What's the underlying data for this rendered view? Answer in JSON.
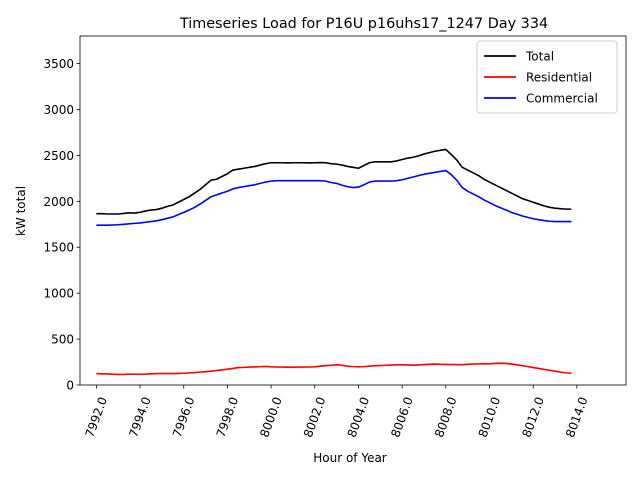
{
  "chart_data": {
    "type": "line",
    "title": "Timeseries Load for P16U p16uhs17_1247  Day 334",
    "xlabel": "Hour of Year",
    "ylabel": "kW total",
    "xlim": [
      7991.25,
      8016.25
    ],
    "ylim": [
      0,
      3800
    ],
    "x_ticks": [
      7992,
      7994,
      7996,
      7998,
      8000,
      8002,
      8004,
      8006,
      8008,
      8010,
      8012,
      8014
    ],
    "x_tick_labels": [
      "7992.0",
      "7994.0",
      "7996.0",
      "7998.0",
      "8000.0",
      "8002.0",
      "8004.0",
      "8006.0",
      "8008.0",
      "8010.0",
      "8012.0",
      "8014.0"
    ],
    "y_ticks": [
      0,
      500,
      1000,
      1500,
      2000,
      2500,
      3000,
      3500
    ],
    "y_tick_labels": [
      "0",
      "500",
      "1000",
      "1500",
      "2000",
      "2500",
      "3000",
      "3500"
    ],
    "legend_position": "top-right",
    "x_start": 7992,
    "x_step": 0.25,
    "series": [
      {
        "name": "Total",
        "color": "#000000",
        "values": [
          1865,
          1865,
          1862,
          1862,
          1862,
          1868,
          1875,
          1872,
          1880,
          1895,
          1905,
          1910,
          1925,
          1945,
          1960,
          1990,
          2020,
          2050,
          2090,
          2130,
          2180,
          2230,
          2240,
          2270,
          2300,
          2340,
          2350,
          2360,
          2370,
          2380,
          2395,
          2410,
          2420,
          2420,
          2420,
          2418,
          2420,
          2420,
          2420,
          2418,
          2420,
          2422,
          2420,
          2410,
          2405,
          2395,
          2380,
          2370,
          2360,
          2390,
          2420,
          2430,
          2430,
          2430,
          2430,
          2440,
          2455,
          2470,
          2480,
          2495,
          2515,
          2530,
          2545,
          2555,
          2565,
          2510,
          2450,
          2370,
          2340,
          2310,
          2280,
          2240,
          2210,
          2180,
          2150,
          2120,
          2090,
          2060,
          2030,
          2010,
          1990,
          1970,
          1950,
          1935,
          1925,
          1920,
          1915,
          1915
        ]
      },
      {
        "name": "Residential",
        "color": "#ff0000",
        "values": [
          125,
          122,
          120,
          118,
          115,
          115,
          118,
          117,
          116,
          118,
          122,
          124,
          124,
          124,
          125,
          126,
          128,
          132,
          135,
          140,
          145,
          150,
          158,
          165,
          172,
          180,
          190,
          192,
          195,
          197,
          200,
          202,
          198,
          196,
          195,
          194,
          194,
          195,
          195,
          196,
          198,
          205,
          210,
          215,
          220,
          215,
          205,
          200,
          198,
          200,
          205,
          210,
          212,
          215,
          217,
          220,
          220,
          218,
          216,
          218,
          222,
          225,
          228,
          225,
          224,
          223,
          222,
          221,
          225,
          228,
          230,
          232,
          230,
          235,
          238,
          235,
          228,
          220,
          210,
          200,
          190,
          180,
          170,
          160,
          150,
          140,
          132,
          128
        ]
      },
      {
        "name": "Commercial",
        "color": "#0000ff",
        "values": [
          1740,
          1740,
          1740,
          1742,
          1745,
          1750,
          1755,
          1760,
          1765,
          1772,
          1780,
          1788,
          1800,
          1815,
          1830,
          1855,
          1880,
          1905,
          1935,
          1970,
          2010,
          2050,
          2070,
          2090,
          2110,
          2135,
          2150,
          2160,
          2170,
          2180,
          2195,
          2210,
          2220,
          2225,
          2225,
          2225,
          2225,
          2225,
          2225,
          2225,
          2225,
          2225,
          2220,
          2205,
          2195,
          2175,
          2160,
          2150,
          2155,
          2180,
          2210,
          2220,
          2220,
          2220,
          2220,
          2225,
          2235,
          2250,
          2265,
          2280,
          2295,
          2305,
          2315,
          2325,
          2335,
          2290,
          2230,
          2150,
          2110,
          2080,
          2050,
          2015,
          1985,
          1955,
          1930,
          1905,
          1880,
          1860,
          1840,
          1825,
          1810,
          1800,
          1790,
          1783,
          1780,
          1780,
          1780,
          1780
        ]
      }
    ]
  }
}
